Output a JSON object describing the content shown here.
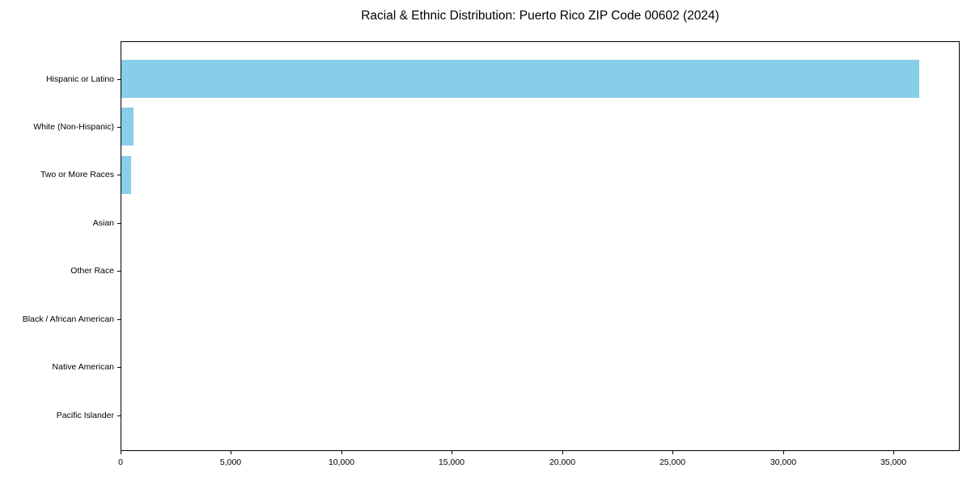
{
  "chart_data": {
    "type": "bar",
    "orientation": "horizontal",
    "title": "Racial & Ethnic Distribution: Puerto Rico ZIP Code 00602 (2024)",
    "categories": [
      "Hispanic or Latino",
      "White (Non-Hispanic)",
      "Two or More Races",
      "Asian",
      "Other Race",
      "Black / African American",
      "Native American",
      "Pacific Islander"
    ],
    "values": [
      36130,
      550,
      440,
      0,
      0,
      0,
      0,
      0
    ],
    "xlabel": "",
    "ylabel": "",
    "xlim": [
      0,
      38000
    ],
    "xticks": [
      0,
      5000,
      10000,
      15000,
      20000,
      25000,
      30000,
      35000
    ],
    "grid": false,
    "legend": "none",
    "bar_color": "#87CEEB",
    "frame_color": "#000000",
    "text_color": "#000000",
    "background_color": "#FFFFFF"
  }
}
